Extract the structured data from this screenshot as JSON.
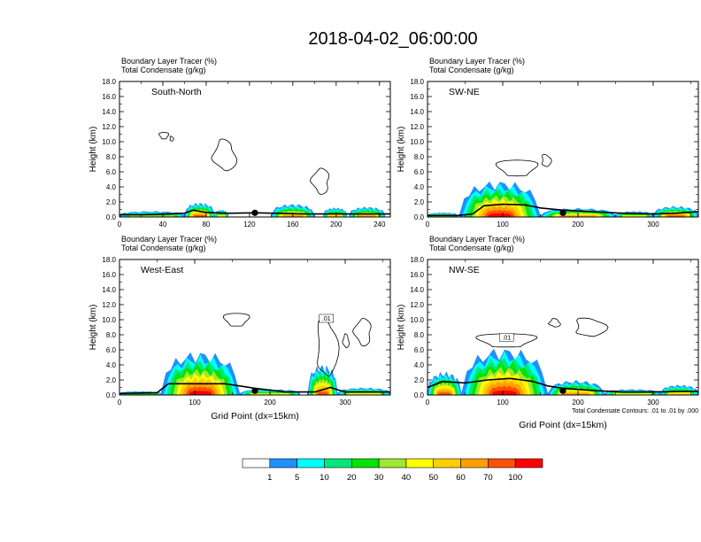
{
  "title": "2018-04-02_06:00:00",
  "chart_data": [
    {
      "type": "heatmap",
      "panel_label": "South-North",
      "header_lines": [
        "Boundary Layer Tracer   (%)",
        "Total Condensate   (g/kg)"
      ],
      "ylabel": "Height (km)",
      "xlabel": "",
      "xlim": [
        0,
        250
      ],
      "xticks": [
        0,
        40,
        80,
        120,
        160,
        200,
        240
      ],
      "ylim": [
        0,
        18
      ],
      "yticks": [
        "0.0",
        "2.0",
        "4.0",
        "6.0",
        "8.0",
        "10.0",
        "12.0",
        "14.0",
        "16.0",
        "18.0"
      ],
      "marker_x": 125,
      "terrain": [
        [
          0,
          0.3
        ],
        [
          20,
          0.3
        ],
        [
          45,
          0.4
        ],
        [
          60,
          0.5
        ],
        [
          68,
          0.9
        ],
        [
          80,
          0.6
        ],
        [
          100,
          0.5
        ],
        [
          125,
          0.55
        ],
        [
          145,
          0.5
        ],
        [
          170,
          0.4
        ],
        [
          200,
          0.4
        ],
        [
          220,
          0.4
        ],
        [
          250,
          0.4
        ]
      ],
      "tracer_blobs": [
        {
          "x": [
            0,
            60
          ],
          "top": 0.8,
          "level": 30
        },
        {
          "x": [
            60,
            88
          ],
          "top": 2.0,
          "level": 70
        },
        {
          "x": [
            88,
            100
          ],
          "top": 1.0,
          "level": 40
        },
        {
          "x": [
            140,
            180
          ],
          "top": 1.8,
          "level": 60
        },
        {
          "x": [
            188,
            210
          ],
          "top": 1.3,
          "level": 50
        },
        {
          "x": [
            212,
            245
          ],
          "top": 1.4,
          "level": 60
        }
      ],
      "condensate_contours": [
        {
          "x": [
            36,
            46
          ],
          "y": [
            10.2,
            11.4
          ]
        },
        {
          "x": [
            46,
            50
          ],
          "y": [
            10.0,
            10.8
          ]
        },
        {
          "x": [
            84,
            110
          ],
          "y": [
            6.0,
            10.5
          ]
        },
        {
          "x": [
            176,
            196
          ],
          "y": [
            3.0,
            6.5
          ]
        }
      ]
    },
    {
      "type": "heatmap",
      "panel_label": "SW-NE",
      "header_lines": [
        "Boundary Layer Tracer   (%)",
        "Total Condensate   (g/kg)"
      ],
      "ylabel": "Height (km)",
      "xlabel": "",
      "xlim": [
        0,
        360
      ],
      "xticks": [
        0,
        100,
        200,
        300
      ],
      "ylim": [
        0,
        18
      ],
      "yticks": [
        "0.0",
        "2.0",
        "4.0",
        "6.0",
        "8.0",
        "10.0",
        "12.0",
        "14.0",
        "16.0",
        "18.0"
      ],
      "marker_x": 180,
      "terrain": [
        [
          0,
          0.2
        ],
        [
          40,
          0.2
        ],
        [
          60,
          0.4
        ],
        [
          75,
          1.5
        ],
        [
          100,
          1.7
        ],
        [
          130,
          1.6
        ],
        [
          150,
          1.2
        ],
        [
          180,
          0.9
        ],
        [
          220,
          0.7
        ],
        [
          260,
          0.5
        ],
        [
          300,
          0.4
        ],
        [
          330,
          0.5
        ],
        [
          360,
          0.7
        ]
      ],
      "tracer_blobs": [
        {
          "x": [
            0,
            40
          ],
          "top": 0.6,
          "level": 30
        },
        {
          "x": [
            42,
            150
          ],
          "top": 5.0,
          "level": 100
        },
        {
          "x": [
            150,
            250
          ],
          "top": 1.2,
          "level": 60
        },
        {
          "x": [
            250,
            300
          ],
          "top": 0.8,
          "level": 40
        },
        {
          "x": [
            300,
            360
          ],
          "top": 1.5,
          "level": 70
        }
      ],
      "condensate_contours": [
        {
          "x": [
            88,
            150
          ],
          "y": [
            5.0,
            8.0
          ]
        },
        {
          "x": [
            150,
            165
          ],
          "y": [
            6.5,
            8.5
          ]
        }
      ]
    },
    {
      "type": "heatmap",
      "panel_label": "West-East",
      "header_lines": [
        "Boundary Layer Tracer   (%)",
        "Total Condensate   (g/kg)"
      ],
      "ylabel": "Height (km)",
      "xlabel": "Grid Point (dx=15km)",
      "xlim": [
        0,
        360
      ],
      "xticks": [
        0,
        100,
        200,
        300
      ],
      "ylim": [
        0,
        18
      ],
      "yticks": [
        "0.0",
        "2.0",
        "4.0",
        "6.0",
        "8.0",
        "10.0",
        "12.0",
        "14.0",
        "16.0",
        "18.0"
      ],
      "marker_x": 180,
      "terrain": [
        [
          0,
          0.2
        ],
        [
          50,
          0.3
        ],
        [
          65,
          1.5
        ],
        [
          100,
          1.5
        ],
        [
          140,
          1.5
        ],
        [
          160,
          1.2
        ],
        [
          180,
          0.9
        ],
        [
          220,
          0.4
        ],
        [
          260,
          0.4
        ],
        [
          280,
          1.0
        ],
        [
          300,
          0.4
        ],
        [
          360,
          0.4
        ]
      ],
      "tracer_blobs": [
        {
          "x": [
            0,
            55
          ],
          "top": 0.5,
          "level": 20
        },
        {
          "x": [
            55,
            160
          ],
          "top": 6.0,
          "level": 100
        },
        {
          "x": [
            160,
            240
          ],
          "top": 0.8,
          "level": 40
        },
        {
          "x": [
            250,
            290
          ],
          "top": 4.2,
          "level": 90
        },
        {
          "x": [
            290,
            360
          ],
          "top": 1.0,
          "level": 40
        }
      ],
      "condensate_contours": [
        {
          "x": [
            136,
            175
          ],
          "y": [
            8.8,
            11.2
          ]
        },
        {
          "x": [
            258,
            292
          ],
          "y": [
            1.6,
            11.0
          ]
        },
        {
          "x": [
            296,
            306
          ],
          "y": [
            6.2,
            8.2
          ]
        },
        {
          "x": [
            310,
            338
          ],
          "y": [
            6.5,
            10.2
          ]
        }
      ],
      "contour_label": ".01"
    },
    {
      "type": "heatmap",
      "panel_label": "NW-SE",
      "header_lines": [
        "Boundary Layer Tracer   (%)",
        "Total Condensate   (g/kg)"
      ],
      "ylabel": "Height (km)",
      "xlabel": "Grid Point (dx=15km)",
      "xlim": [
        0,
        360
      ],
      "xticks": [
        0,
        100,
        200,
        300
      ],
      "ylim": [
        0,
        18
      ],
      "yticks": [
        "0.0",
        "2.0",
        "4.0",
        "6.0",
        "8.0",
        "10.0",
        "12.0",
        "14.0",
        "16.0",
        "18.0"
      ],
      "marker_x": 180,
      "terrain": [
        [
          0,
          1.0
        ],
        [
          20,
          1.8
        ],
        [
          50,
          1.6
        ],
        [
          80,
          2.0
        ],
        [
          110,
          2.2
        ],
        [
          140,
          1.8
        ],
        [
          160,
          1.2
        ],
        [
          180,
          0.9
        ],
        [
          220,
          0.6
        ],
        [
          260,
          0.4
        ],
        [
          300,
          0.4
        ],
        [
          360,
          0.5
        ]
      ],
      "tracer_blobs": [
        {
          "x": [
            0,
            45
          ],
          "top": 3.2,
          "level": 90
        },
        {
          "x": [
            45,
            160
          ],
          "top": 6.5,
          "level": 100
        },
        {
          "x": [
            160,
            235
          ],
          "top": 2.0,
          "level": 60
        },
        {
          "x": [
            235,
            310
          ],
          "top": 0.8,
          "level": 40
        },
        {
          "x": [
            310,
            360
          ],
          "top": 1.4,
          "level": 50
        }
      ],
      "condensate_contours": [
        {
          "x": [
            60,
            150
          ],
          "y": [
            6.0,
            8.5
          ]
        },
        {
          "x": [
            190,
            240
          ],
          "y": [
            7.5,
            10.5
          ]
        },
        {
          "x": [
            160,
            178
          ],
          "y": [
            9.0,
            10.2
          ]
        }
      ],
      "contour_label": ".01",
      "footnote": "Total Condensate Contours: .01 to .01 by .000"
    }
  ],
  "colorbar": {
    "labels": [
      "1",
      "5",
      "10",
      "20",
      "30",
      "40",
      "50",
      "60",
      "70",
      "100"
    ],
    "colors": [
      "#ffffff",
      "#1e90ff",
      "#00ffff",
      "#00e87a",
      "#00e400",
      "#a0e632",
      "#ffff00",
      "#ffd000",
      "#ffa000",
      "#ff5000",
      "#ff0000"
    ]
  }
}
